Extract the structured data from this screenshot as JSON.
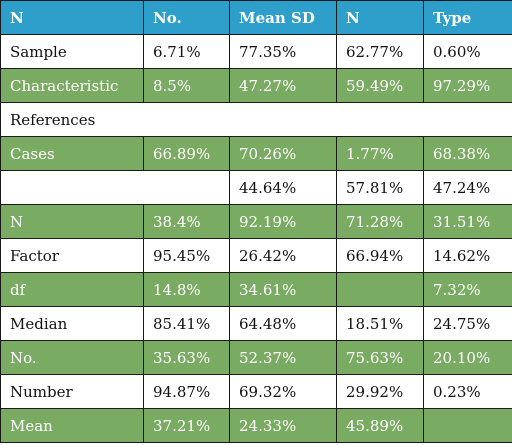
{
  "table": {
    "headers": [
      "N",
      "No.",
      "Mean SD",
      "N",
      "Type"
    ],
    "rows": [
      {
        "cells": [
          "Sample",
          "6.71%",
          "77.35%",
          "62.77%",
          "0.60%"
        ],
        "style": "white"
      },
      {
        "cells": [
          "Characteristic",
          "8.5%",
          "47.27%",
          "59.49%",
          "97.29%"
        ],
        "style": "green"
      },
      {
        "cells": [
          "References"
        ],
        "style": "white",
        "span": 5
      },
      {
        "cells": [
          "Cases",
          "66.89%",
          "70.26%",
          "1.77%",
          "68.38%"
        ],
        "style": "green"
      },
      {
        "cells": [
          "",
          "",
          "44.64%",
          "57.81%",
          "47.24%"
        ],
        "style": "white"
      },
      {
        "cells": [
          "N",
          "38.4%",
          "92.19%",
          "71.28%",
          "31.51%"
        ],
        "style": "green"
      },
      {
        "cells": [
          "Factor",
          "95.45%",
          "26.42%",
          "66.94%",
          "14.62%"
        ],
        "style": "white"
      },
      {
        "cells": [
          "df",
          "14.8%",
          "34.61%",
          "",
          "7.32%"
        ],
        "style": "green"
      },
      {
        "cells": [
          "Median",
          "85.41%",
          "64.48%",
          "18.51%",
          "24.75%"
        ],
        "style": "white"
      },
      {
        "cells": [
          "No.",
          "35.63%",
          "52.37%",
          "75.63%",
          "20.10%"
        ],
        "style": "green"
      },
      {
        "cells": [
          "Number",
          "94.87%",
          "69.32%",
          "29.92%",
          "0.23%"
        ],
        "style": "white"
      },
      {
        "cells": [
          "Mean",
          "37.21%",
          "24.33%",
          "45.89%",
          ""
        ],
        "style": "green"
      }
    ],
    "colors": {
      "header": "#2e9fca",
      "green_row": "#7aab62",
      "white_row": "#ffffff"
    }
  }
}
